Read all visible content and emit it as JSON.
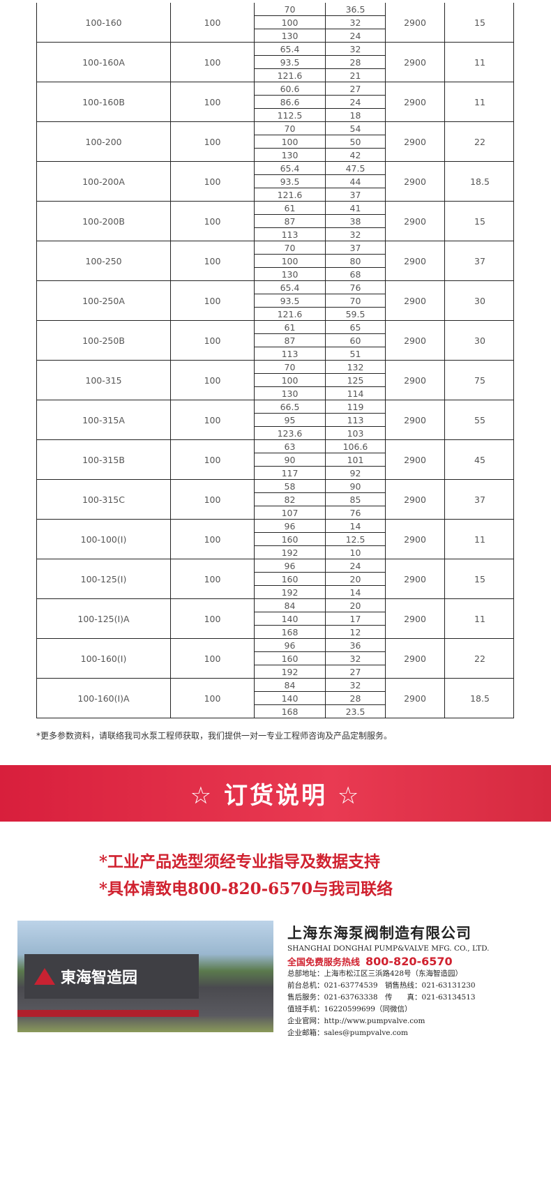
{
  "table": {
    "rows": [
      {
        "model": "100-160",
        "inlet": "100",
        "flow": [
          "70",
          "100",
          "130"
        ],
        "head": [
          "36.5",
          "32",
          "24"
        ],
        "speed": "2900",
        "power": "15"
      },
      {
        "model": "100-160A",
        "inlet": "100",
        "flow": [
          "65.4",
          "93.5",
          "121.6"
        ],
        "head": [
          "32",
          "28",
          "21"
        ],
        "speed": "2900",
        "power": "11"
      },
      {
        "model": "100-160B",
        "inlet": "100",
        "flow": [
          "60.6",
          "86.6",
          "112.5"
        ],
        "head": [
          "27",
          "24",
          "18"
        ],
        "speed": "2900",
        "power": "11"
      },
      {
        "model": "100-200",
        "inlet": "100",
        "flow": [
          "70",
          "100",
          "130"
        ],
        "head": [
          "54",
          "50",
          "42"
        ],
        "speed": "2900",
        "power": "22"
      },
      {
        "model": "100-200A",
        "inlet": "100",
        "flow": [
          "65.4",
          "93.5",
          "121.6"
        ],
        "head": [
          "47.5",
          "44",
          "37"
        ],
        "speed": "2900",
        "power": "18.5"
      },
      {
        "model": "100-200B",
        "inlet": "100",
        "flow": [
          "61",
          "87",
          "113"
        ],
        "head": [
          "41",
          "38",
          "32"
        ],
        "speed": "2900",
        "power": "15"
      },
      {
        "model": "100-250",
        "inlet": "100",
        "flow": [
          "70",
          "100",
          "130"
        ],
        "head": [
          "37",
          "80",
          "68"
        ],
        "speed": "2900",
        "power": "37"
      },
      {
        "model": "100-250A",
        "inlet": "100",
        "flow": [
          "65.4",
          "93.5",
          "121.6"
        ],
        "head": [
          "76",
          "70",
          "59.5"
        ],
        "speed": "2900",
        "power": "30"
      },
      {
        "model": "100-250B",
        "inlet": "100",
        "flow": [
          "61",
          "87",
          "113"
        ],
        "head": [
          "65",
          "60",
          "51"
        ],
        "speed": "2900",
        "power": "30"
      },
      {
        "model": "100-315",
        "inlet": "100",
        "flow": [
          "70",
          "100",
          "130"
        ],
        "head": [
          "132",
          "125",
          "114"
        ],
        "speed": "2900",
        "power": "75"
      },
      {
        "model": "100-315A",
        "inlet": "100",
        "flow": [
          "66.5",
          "95",
          "123.6"
        ],
        "head": [
          "119",
          "113",
          "103"
        ],
        "speed": "2900",
        "power": "55"
      },
      {
        "model": "100-315B",
        "inlet": "100",
        "flow": [
          "63",
          "90",
          "117"
        ],
        "head": [
          "106.6",
          "101",
          "92"
        ],
        "speed": "2900",
        "power": "45"
      },
      {
        "model": "100-315C",
        "inlet": "100",
        "flow": [
          "58",
          "82",
          "107"
        ],
        "head": [
          "90",
          "85",
          "76"
        ],
        "speed": "2900",
        "power": "37"
      },
      {
        "model": "100-100(I)",
        "inlet": "100",
        "flow": [
          "96",
          "160",
          "192"
        ],
        "head": [
          "14",
          "12.5",
          "10"
        ],
        "speed": "2900",
        "power": "11"
      },
      {
        "model": "100-125(I)",
        "inlet": "100",
        "flow": [
          "96",
          "160",
          "192"
        ],
        "head": [
          "24",
          "20",
          "14"
        ],
        "speed": "2900",
        "power": "15"
      },
      {
        "model": "100-125(I)A",
        "inlet": "100",
        "flow": [
          "84",
          "140",
          "168"
        ],
        "head": [
          "20",
          "17",
          "12"
        ],
        "speed": "2900",
        "power": "11"
      },
      {
        "model": "100-160(I)",
        "inlet": "100",
        "flow": [
          "96",
          "160",
          "192"
        ],
        "head": [
          "36",
          "32",
          "27"
        ],
        "speed": "2900",
        "power": "22"
      },
      {
        "model": "100-160(I)A",
        "inlet": "100",
        "flow": [
          "84",
          "140",
          "168"
        ],
        "head": [
          "32",
          "28",
          "23.5"
        ],
        "speed": "2900",
        "power": "18.5"
      }
    ]
  },
  "note": "*更多参数资料，请联络我司水泵工程师获取，我们提供一对一专业工程师咨询及产品定制服务。",
  "banner": {
    "title": "☆ 订货说明 ☆",
    "color": "#d81f3c"
  },
  "slogans": [
    "*工业产品选型须经专业指导及数据支持",
    "*具体请致电800-820-6570与我司联络"
  ],
  "photo": {
    "plaque": "東海智造园"
  },
  "company": {
    "name_cn": "上海东海泵阀制造有限公司",
    "name_en": "SHANGHAI DONGHAI PUMP&VALVE MFG. CO., LTD.",
    "hotline_label": "全国免费服务热线",
    "hotline": "800-820-6570",
    "lines": [
      "总部地址：上海市松江区三浜路428号（东海智造园）",
      "前台总机：021-63774539　销售热线：021-63131230",
      "售后服务：021-63763338　传　　真：021-63134513",
      "值班手机：16220599699（同微信）",
      "企业官网：http://www.pumpvalve.com",
      "企业邮箱：sales@pumpvalve.com"
    ]
  }
}
